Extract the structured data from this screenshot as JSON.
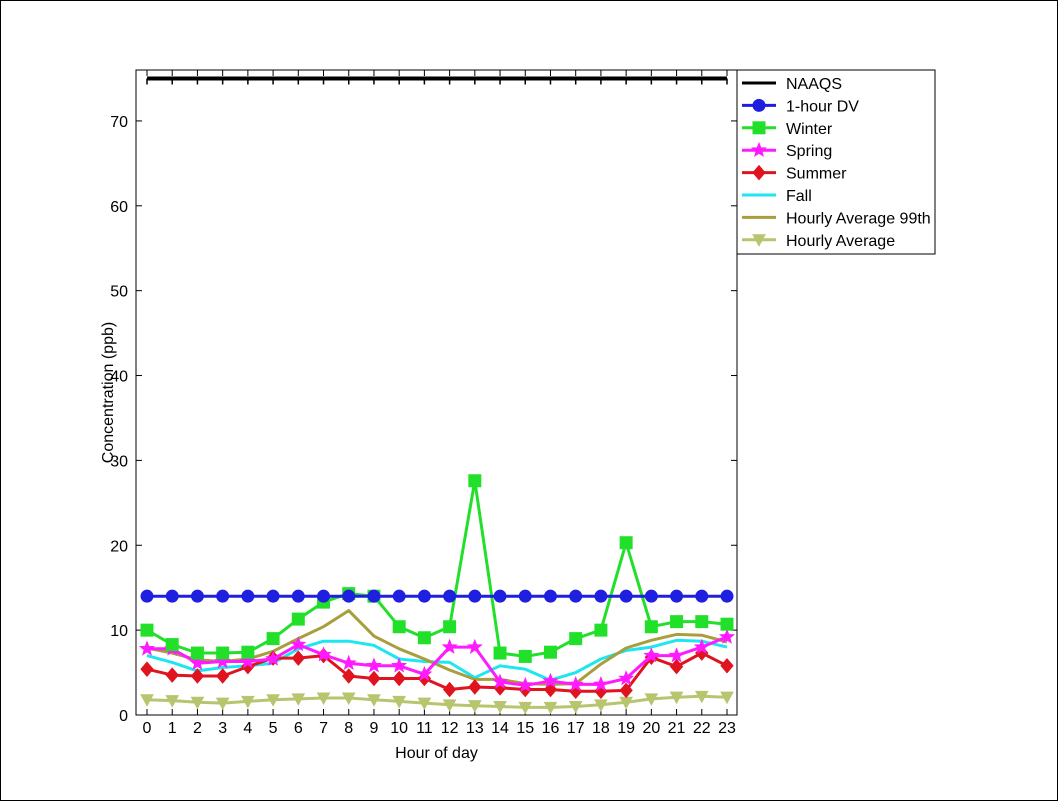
{
  "chart_data": {
    "type": "line",
    "title": "",
    "xlabel": "Hour of day",
    "ylabel": "Concentration (ppb)",
    "x": [
      0,
      1,
      2,
      3,
      4,
      5,
      6,
      7,
      8,
      9,
      10,
      11,
      12,
      13,
      14,
      15,
      16,
      17,
      18,
      19,
      20,
      21,
      22,
      23
    ],
    "xlim": [
      0,
      23
    ],
    "ylim": [
      0,
      76
    ],
    "yticks": [
      0,
      10,
      20,
      30,
      40,
      50,
      60,
      70
    ],
    "xticks": [
      0,
      1,
      2,
      3,
      4,
      5,
      6,
      7,
      8,
      9,
      10,
      11,
      12,
      13,
      14,
      15,
      16,
      17,
      18,
      19,
      20,
      21,
      22,
      23
    ],
    "grid": false,
    "legend_position": "outside-right",
    "series": [
      {
        "name": "NAAQS",
        "color": "#000000",
        "marker": "tick",
        "values": [
          75,
          75,
          75,
          75,
          75,
          75,
          75,
          75,
          75,
          75,
          75,
          75,
          75,
          75,
          75,
          75,
          75,
          75,
          75,
          75,
          75,
          75,
          75,
          75
        ]
      },
      {
        "name": "1-hour DV",
        "color": "#1f1fe0",
        "marker": "circle",
        "values": [
          14,
          14,
          14,
          14,
          14,
          14,
          14,
          14,
          14,
          14,
          14,
          14,
          14,
          14,
          14,
          14,
          14,
          14,
          14,
          14,
          14,
          14,
          14,
          14
        ]
      },
      {
        "name": "Winter",
        "color": "#22e02a",
        "marker": "square",
        "values": [
          10,
          8.3,
          7.3,
          7.3,
          7.4,
          9,
          11.3,
          13.3,
          14.3,
          14,
          10.4,
          9.1,
          10.4,
          27.6,
          7.3,
          6.9,
          7.4,
          9,
          10,
          20.3,
          10.4,
          11,
          11,
          10.7
        ]
      },
      {
        "name": "Spring",
        "color": "#ff1aff",
        "marker": "star",
        "values": [
          7.8,
          7.8,
          6.1,
          6.3,
          6.3,
          6.6,
          8.3,
          7.1,
          6.1,
          5.8,
          5.8,
          4.8,
          8,
          8,
          3.9,
          3.5,
          4,
          3.6,
          3.6,
          4.3,
          7,
          7,
          8,
          9.2
        ]
      },
      {
        "name": "Summer",
        "color": "#e0141e",
        "marker": "diamond",
        "values": [
          5.4,
          4.7,
          4.6,
          4.6,
          5.7,
          6.7,
          6.7,
          7,
          4.6,
          4.3,
          4.3,
          4.3,
          3,
          3.3,
          3.2,
          3,
          3,
          2.8,
          2.8,
          2.9,
          6.8,
          5.7,
          7.3,
          5.8
        ]
      },
      {
        "name": "Fall",
        "color": "#1ee6f0",
        "marker": "none",
        "values": [
          7,
          6.2,
          5.2,
          5.6,
          5.8,
          6.1,
          7.8,
          8.7,
          8.7,
          8.2,
          6.6,
          6.3,
          6.2,
          4.4,
          5.8,
          5.4,
          4.1,
          5,
          6.6,
          7.6,
          8,
          8.8,
          8.7,
          8
        ]
      },
      {
        "name": "Hourly Average 99th",
        "color": "#a89e3c",
        "marker": "none",
        "values": [
          7.9,
          7.3,
          6.5,
          6.3,
          6.6,
          7.5,
          9,
          10.4,
          12.3,
          9.3,
          7.8,
          6.6,
          5.3,
          4.2,
          4.2,
          3.7,
          3.6,
          3.7,
          6,
          7.9,
          8.8,
          9.5,
          9.4,
          8.6
        ]
      },
      {
        "name": "Hourly Average",
        "color": "#b9c46e",
        "marker": "triangle-down",
        "values": [
          1.8,
          1.7,
          1.5,
          1.4,
          1.6,
          1.8,
          1.9,
          2,
          2,
          1.8,
          1.6,
          1.4,
          1.2,
          1.1,
          1,
          0.9,
          0.9,
          1,
          1.2,
          1.5,
          1.9,
          2.1,
          2.2,
          2.1
        ]
      }
    ]
  }
}
